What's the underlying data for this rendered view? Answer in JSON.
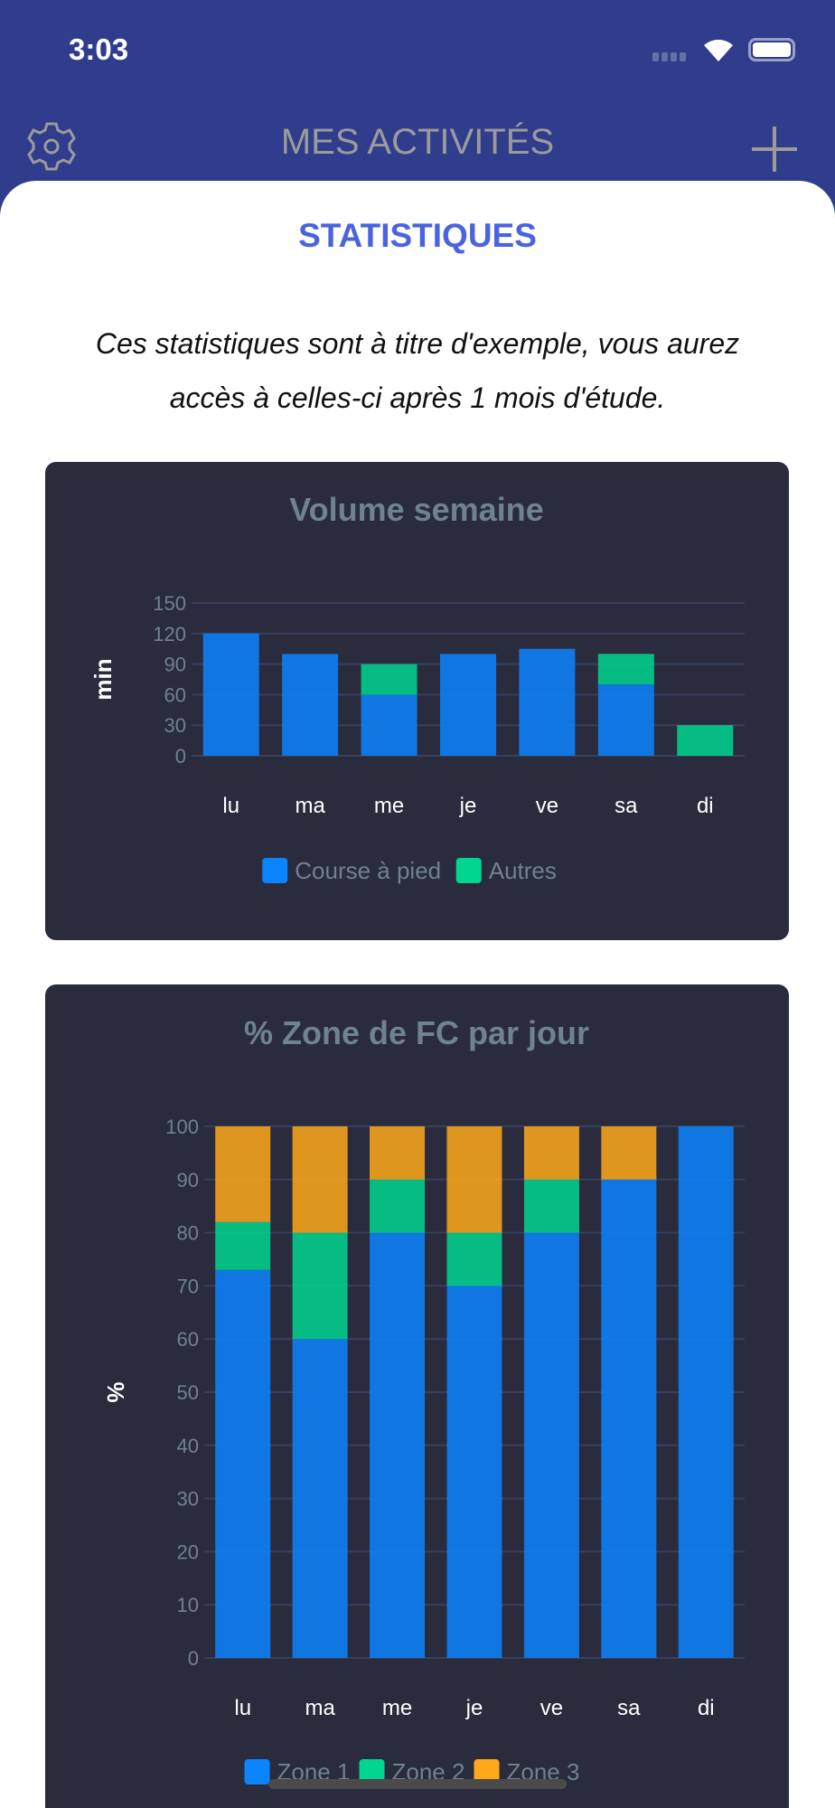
{
  "status_bar": {
    "time": "3:03"
  },
  "nav": {
    "title": "MES ACTIVITÉS",
    "settings_icon": "gear-icon",
    "add_icon": "plus-icon"
  },
  "page": {
    "title": "STATISTIQUES",
    "note": "Ces statistiques sont à titre d'exemple, vous aurez accès à celles-ci après 1 mois d'étude."
  },
  "chart_data": [
    {
      "type": "bar",
      "stacked": true,
      "title": "Volume semaine",
      "xlabel": "",
      "ylabel": "min",
      "categories": [
        "lu",
        "ma",
        "me",
        "je",
        "ve",
        "sa",
        "di"
      ],
      "ylim": [
        0,
        150
      ],
      "yticks": [
        0,
        30,
        60,
        90,
        120,
        150
      ],
      "grid": true,
      "legend": "bottom",
      "series": [
        {
          "name": "Course à pied",
          "color": "#0a84ff",
          "values": [
            120,
            100,
            60,
            100,
            105,
            70,
            0
          ]
        },
        {
          "name": "Autres",
          "color": "#00d68f",
          "values": [
            0,
            0,
            30,
            0,
            0,
            30,
            30
          ]
        }
      ]
    },
    {
      "type": "bar",
      "stacked": true,
      "title": "% Zone de FC par jour",
      "xlabel": "",
      "ylabel": "%",
      "categories": [
        "lu",
        "ma",
        "me",
        "je",
        "ve",
        "sa",
        "di"
      ],
      "ylim": [
        0,
        100
      ],
      "yticks": [
        0,
        10,
        20,
        30,
        40,
        50,
        60,
        70,
        80,
        90,
        100
      ],
      "grid": true,
      "legend": "bottom",
      "series": [
        {
          "name": "Zone 1",
          "color": "#0a84ff",
          "values": [
            73,
            60,
            80,
            70,
            80,
            90,
            100
          ]
        },
        {
          "name": "Zone 2",
          "color": "#00d68f",
          "values": [
            9,
            20,
            10,
            10,
            10,
            0,
            0
          ]
        },
        {
          "name": "Zone 3",
          "color": "#ffa91a",
          "values": [
            18,
            20,
            10,
            20,
            10,
            10,
            0
          ]
        }
      ]
    }
  ]
}
